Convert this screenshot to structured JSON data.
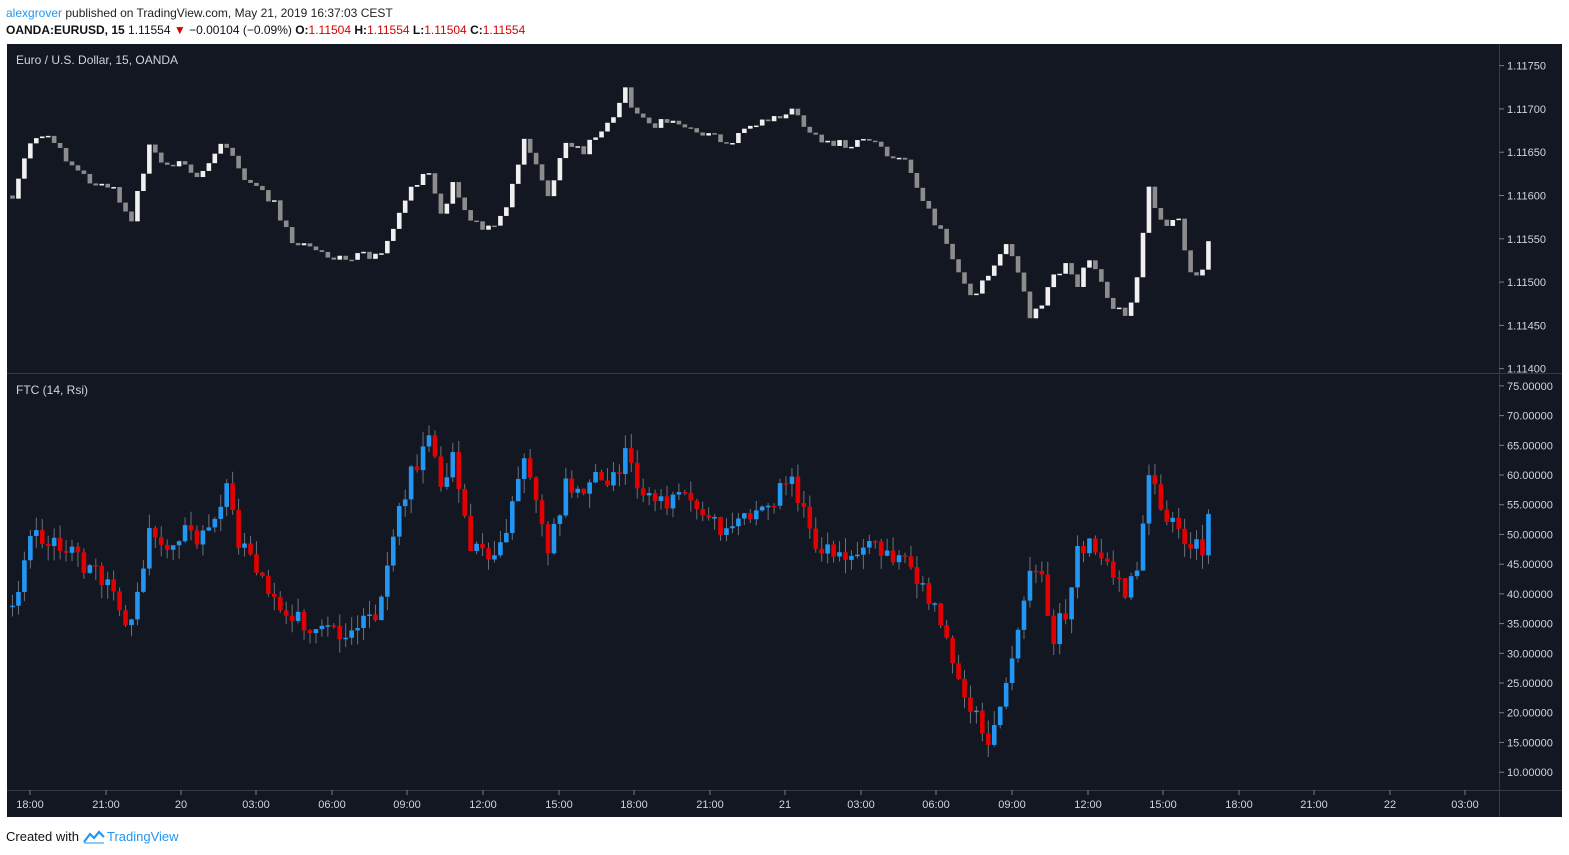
{
  "header": {
    "author": "alexgrover",
    "published": "published on TradingView.com, May 21, 2019 16:37:03 CEST",
    "symbol": "OANDA:EURUSD, 15",
    "price": "1.11554",
    "change": "−0.00104 (−0.09%)",
    "o_label": "O:",
    "o_value": "1.11504",
    "h_label": "H:",
    "h_value": "1.11554",
    "l_label": "L:",
    "l_value": "1.11504",
    "c_label": "C:",
    "c_value": "1.11554"
  },
  "footer": {
    "created_with": "Created with",
    "brand": "TradingView"
  },
  "colors": {
    "background": "#131722",
    "up_price": "#f0f0f0",
    "down_price": "#8c8c8c",
    "up_ind": "#2196f3",
    "down_ind": "#e30000",
    "wick": "#6b6f7b",
    "axis_text": "#d1d4dc"
  },
  "chart_data": [
    {
      "type": "candlestick",
      "title": "Euro / U.S. Dollar, 15, OANDA",
      "ylim": [
        1.1138,
        1.1178
      ],
      "yticks": [
        "1.11400",
        "1.11450",
        "1.11500",
        "1.11550",
        "1.11600",
        "1.11650",
        "1.11700",
        "1.11750"
      ],
      "close_path": [
        [
          0,
          1.116
        ],
        [
          3,
          1.1166
        ],
        [
          5,
          1.1167
        ],
        [
          8,
          1.1165
        ],
        [
          11,
          1.1163
        ],
        [
          14,
          1.1161
        ],
        [
          17,
          1.1161
        ],
        [
          20,
          1.1157
        ],
        [
          23,
          1.1166
        ],
        [
          26,
          1.1163
        ],
        [
          29,
          1.1164
        ],
        [
          31,
          1.1162
        ],
        [
          34,
          1.1165
        ],
        [
          36,
          1.1166
        ],
        [
          38,
          1.1163
        ],
        [
          41,
          1.1161
        ],
        [
          44,
          1.1159
        ],
        [
          47,
          1.1155
        ],
        [
          51,
          1.1154
        ],
        [
          54,
          1.1153
        ],
        [
          58,
          1.1153
        ],
        [
          62,
          1.1153
        ],
        [
          64,
          1.1156
        ],
        [
          67,
          1.1161
        ],
        [
          70,
          1.1163
        ],
        [
          72,
          1.1158
        ],
        [
          74,
          1.1161
        ],
        [
          77,
          1.1157
        ],
        [
          80,
          1.1156
        ],
        [
          83,
          1.1159
        ],
        [
          86,
          1.1166
        ],
        [
          88,
          1.1164
        ],
        [
          90,
          1.116
        ],
        [
          93,
          1.1166
        ],
        [
          96,
          1.1165
        ],
        [
          98,
          1.1167
        ],
        [
          101,
          1.1169
        ],
        [
          103,
          1.1172
        ],
        [
          105,
          1.1169
        ],
        [
          108,
          1.1168
        ],
        [
          111,
          1.1169
        ],
        [
          114,
          1.1168
        ],
        [
          117,
          1.1167
        ],
        [
          121,
          1.1166
        ],
        [
          124,
          1.1168
        ],
        [
          128,
          1.1169
        ],
        [
          131,
          1.117
        ],
        [
          134,
          1.1167
        ],
        [
          137,
          1.1166
        ],
        [
          141,
          1.1166
        ],
        [
          144,
          1.1166
        ],
        [
          147,
          1.1165
        ],
        [
          150,
          1.1164
        ],
        [
          152,
          1.1161
        ],
        [
          155,
          1.1157
        ],
        [
          158,
          1.1153
        ],
        [
          161,
          1.1148
        ],
        [
          164,
          1.1151
        ],
        [
          167,
          1.1154
        ],
        [
          169,
          1.1151
        ],
        [
          171,
          1.1146
        ],
        [
          173,
          1.1147
        ],
        [
          175,
          1.1151
        ],
        [
          177,
          1.1152
        ],
        [
          179,
          1.115
        ],
        [
          181,
          1.1153
        ],
        [
          183,
          1.115
        ],
        [
          185,
          1.1147
        ],
        [
          187,
          1.1146
        ],
        [
          189,
          1.115
        ],
        [
          191,
          1.1161
        ],
        [
          193,
          1.1157
        ],
        [
          196,
          1.1157
        ],
        [
          198,
          1.1151
        ],
        [
          200,
          1.1151
        ],
        [
          201,
          1.1155
        ]
      ]
    },
    {
      "type": "candlestick",
      "title": "FTC (14, Rsi)",
      "ylim": [
        7,
        77
      ],
      "yticks": [
        "10.00000",
        "15.00000",
        "20.00000",
        "25.00000",
        "30.00000",
        "35.00000",
        "40.00000",
        "45.00000",
        "50.00000",
        "55.00000",
        "60.00000",
        "65.00000",
        "70.00000",
        "75.00000"
      ],
      "close_path": [
        [
          0,
          38
        ],
        [
          3,
          50
        ],
        [
          5,
          50
        ],
        [
          8,
          47
        ],
        [
          11,
          46
        ],
        [
          14,
          43
        ],
        [
          17,
          40
        ],
        [
          20,
          34
        ],
        [
          23,
          52
        ],
        [
          26,
          47
        ],
        [
          29,
          51
        ],
        [
          31,
          48
        ],
        [
          34,
          52
        ],
        [
          36,
          57
        ],
        [
          38,
          49
        ],
        [
          41,
          45
        ],
        [
          44,
          40
        ],
        [
          47,
          36
        ],
        [
          51,
          34
        ],
        [
          54,
          33
        ],
        [
          58,
          35
        ],
        [
          62,
          38
        ],
        [
          64,
          50
        ],
        [
          67,
          60
        ],
        [
          70,
          67
        ],
        [
          72,
          57
        ],
        [
          74,
          63
        ],
        [
          77,
          48
        ],
        [
          80,
          45
        ],
        [
          83,
          52
        ],
        [
          86,
          62
        ],
        [
          88,
          57
        ],
        [
          90,
          48
        ],
        [
          93,
          58
        ],
        [
          96,
          57
        ],
        [
          98,
          59
        ],
        [
          101,
          60
        ],
        [
          103,
          63
        ],
        [
          105,
          58
        ],
        [
          108,
          55
        ],
        [
          111,
          56
        ],
        [
          114,
          55
        ],
        [
          117,
          53
        ],
        [
          121,
          50
        ],
        [
          124,
          54
        ],
        [
          128,
          56
        ],
        [
          131,
          59
        ],
        [
          134,
          50
        ],
        [
          137,
          47
        ],
        [
          141,
          46
        ],
        [
          144,
          48
        ],
        [
          147,
          46
        ],
        [
          150,
          47
        ],
        [
          152,
          43
        ],
        [
          155,
          37
        ],
        [
          158,
          30
        ],
        [
          161,
          21
        ],
        [
          164,
          16
        ],
        [
          167,
          25
        ],
        [
          169,
          33
        ],
        [
          171,
          45
        ],
        [
          173,
          42
        ],
        [
          175,
          33
        ],
        [
          177,
          37
        ],
        [
          179,
          47
        ],
        [
          181,
          49
        ],
        [
          183,
          47
        ],
        [
          185,
          42
        ],
        [
          187,
          41
        ],
        [
          189,
          43
        ],
        [
          191,
          60
        ],
        [
          193,
          54
        ],
        [
          196,
          52
        ],
        [
          198,
          47
        ],
        [
          200,
          48
        ],
        [
          201,
          54
        ]
      ]
    }
  ],
  "x_axis_labels": [
    "18:00",
    "21:00",
    "20",
    "03:00",
    "06:00",
    "09:00",
    "12:00",
    "15:00",
    "18:00",
    "21:00",
    "21",
    "03:00",
    "06:00",
    "09:00",
    "12:00",
    "15:00",
    "18:00",
    "21:00",
    "22",
    "03:00"
  ]
}
